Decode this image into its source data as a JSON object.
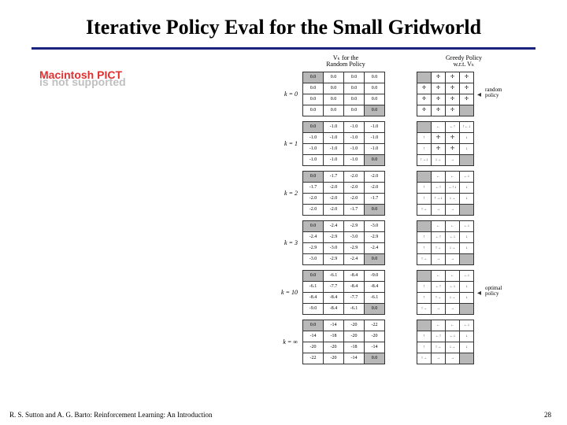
{
  "title": {
    "text": "Iterative Policy Eval for the Small Gridworld",
    "fontsize": 26,
    "color": "#000000",
    "weight": "bold"
  },
  "rule_color": "#1a237e",
  "footer": {
    "citation": "R. S. Sutton and A. G. Barto: Reinforcement Learning: An Introduction",
    "page": "28",
    "fontsize": 9
  },
  "placeholder": {
    "line1": "Macintosh PICT",
    "line2": "is not supported",
    "red": "#e03030",
    "grey": "#c0c0c0",
    "fontsize": 14
  },
  "column_headers": {
    "value": {
      "line1": "Vₖ for the",
      "line2": "Random Policy"
    },
    "policy": {
      "line1": "Greedy Policy",
      "line2": "w.r.t. Vₖ"
    },
    "fontsize": 8
  },
  "side_labels": {
    "random": {
      "text1": "random",
      "text2": "policy",
      "fontsize": 7
    },
    "optimal": {
      "text1": "optimal",
      "text2": "policy",
      "fontsize": 7
    }
  },
  "terminal_color": "#b8b8b8",
  "iterations": [
    {
      "k": "k = 0",
      "values": [
        [
          0.0,
          0.0,
          0.0,
          0.0
        ],
        [
          0.0,
          0.0,
          0.0,
          0.0
        ],
        [
          0.0,
          0.0,
          0.0,
          0.0
        ],
        [
          0.0,
          0.0,
          0.0,
          0.0
        ]
      ],
      "policy": [
        [
          "T",
          "all",
          "all",
          "all"
        ],
        [
          "all",
          "all",
          "all",
          "all"
        ],
        [
          "all",
          "all",
          "all",
          "all"
        ],
        [
          "all",
          "all",
          "all",
          "T"
        ]
      ],
      "side": "random"
    },
    {
      "k": "k = 1",
      "values": [
        [
          0.0,
          -1.0,
          -1.0,
          -1.0
        ],
        [
          -1.0,
          -1.0,
          -1.0,
          -1.0
        ],
        [
          -1.0,
          -1.0,
          -1.0,
          -1.0
        ],
        [
          -1.0,
          -1.0,
          -1.0,
          0.0
        ]
      ],
      "policy": [
        [
          "T",
          "←",
          "←↑",
          "↑←↓"
        ],
        [
          "↑",
          "all",
          "all",
          "↓"
        ],
        [
          "↑",
          "all",
          "all",
          "↓"
        ],
        [
          "↑→↓",
          "↓→",
          "→",
          "T"
        ]
      ]
    },
    {
      "k": "k = 2",
      "values": [
        [
          0.0,
          -1.7,
          -2.0,
          -2.0
        ],
        [
          -1.7,
          -2.0,
          -2.0,
          -2.0
        ],
        [
          -2.0,
          -2.0,
          -2.0,
          -1.7
        ],
        [
          -2.0,
          -2.0,
          -1.7,
          0.0
        ]
      ],
      "policy": [
        [
          "T",
          "←",
          "←",
          "←↓"
        ],
        [
          "↑",
          "←↑",
          "←↑↓",
          "↓"
        ],
        [
          "↑",
          "↑→↓",
          "↓→",
          "↓"
        ],
        [
          "↑→",
          "→",
          "→",
          "T"
        ]
      ]
    },
    {
      "k": "k = 3",
      "values": [
        [
          0.0,
          -2.4,
          -2.9,
          -3.0
        ],
        [
          -2.4,
          -2.9,
          -3.0,
          -2.9
        ],
        [
          -2.9,
          -3.0,
          -2.9,
          -2.4
        ],
        [
          -3.0,
          -2.9,
          -2.4,
          0.0
        ]
      ],
      "policy": [
        [
          "T",
          "←",
          "←",
          "←↓"
        ],
        [
          "↑",
          "←↑",
          "←↓",
          "↓"
        ],
        [
          "↑",
          "↑→",
          "↓→",
          "↓"
        ],
        [
          "↑→",
          "→",
          "→",
          "T"
        ]
      ]
    },
    {
      "k": "k = 10",
      "values": [
        [
          0.0,
          -6.1,
          -8.4,
          -9.0
        ],
        [
          -6.1,
          -7.7,
          -8.4,
          -8.4
        ],
        [
          -8.4,
          -8.4,
          -7.7,
          -6.1
        ],
        [
          -9.0,
          -8.4,
          -6.1,
          0.0
        ]
      ],
      "policy": [
        [
          "T",
          "←",
          "←",
          "←↓"
        ],
        [
          "↑",
          "←↑",
          "←↓",
          "↓"
        ],
        [
          "↑",
          "↑→",
          "↓→",
          "↓"
        ],
        [
          "↑→",
          "→",
          "→",
          "T"
        ]
      ],
      "side": "optimal"
    },
    {
      "k": "k = ∞",
      "values": [
        [
          0.0,
          -14,
          -20,
          -22
        ],
        [
          -14,
          -18,
          -20,
          -20
        ],
        [
          -20,
          -20,
          -18,
          -14
        ],
        [
          -22,
          -20,
          -14,
          0.0
        ]
      ],
      "policy": [
        [
          "T",
          "←",
          "←",
          "←↓"
        ],
        [
          "↑",
          "←↑",
          "←↓",
          "↓"
        ],
        [
          "↑",
          "↑→",
          "↓→",
          "↓"
        ],
        [
          "↑→",
          "→",
          "→",
          "T"
        ]
      ]
    }
  ],
  "arrow_glyphs": {
    "←": "←",
    "→": "→",
    "↑": "↑",
    "↓": "↓",
    "all": "✢"
  }
}
